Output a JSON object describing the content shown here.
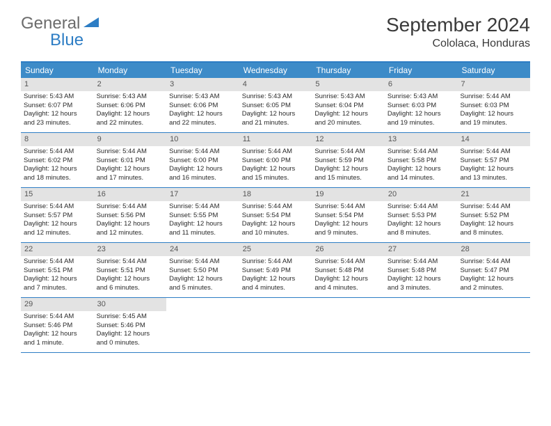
{
  "logo": {
    "general": "General",
    "blue": "Blue"
  },
  "title": "September 2024",
  "location": "Cololaca, Honduras",
  "dayHeaders": [
    "Sunday",
    "Monday",
    "Tuesday",
    "Wednesday",
    "Thursday",
    "Friday",
    "Saturday"
  ],
  "colors": {
    "accent": "#2d7dc4",
    "headerBg": "#3d8bc8",
    "dayNumBg": "#e3e3e3",
    "text": "#2a2a2a",
    "logoGray": "#6b6b6b"
  },
  "weeks": [
    [
      {
        "d": "1",
        "sr": "Sunrise: 5:43 AM",
        "ss": "Sunset: 6:07 PM",
        "dl1": "Daylight: 12 hours",
        "dl2": "and 23 minutes."
      },
      {
        "d": "2",
        "sr": "Sunrise: 5:43 AM",
        "ss": "Sunset: 6:06 PM",
        "dl1": "Daylight: 12 hours",
        "dl2": "and 22 minutes."
      },
      {
        "d": "3",
        "sr": "Sunrise: 5:43 AM",
        "ss": "Sunset: 6:06 PM",
        "dl1": "Daylight: 12 hours",
        "dl2": "and 22 minutes."
      },
      {
        "d": "4",
        "sr": "Sunrise: 5:43 AM",
        "ss": "Sunset: 6:05 PM",
        "dl1": "Daylight: 12 hours",
        "dl2": "and 21 minutes."
      },
      {
        "d": "5",
        "sr": "Sunrise: 5:43 AM",
        "ss": "Sunset: 6:04 PM",
        "dl1": "Daylight: 12 hours",
        "dl2": "and 20 minutes."
      },
      {
        "d": "6",
        "sr": "Sunrise: 5:43 AM",
        "ss": "Sunset: 6:03 PM",
        "dl1": "Daylight: 12 hours",
        "dl2": "and 19 minutes."
      },
      {
        "d": "7",
        "sr": "Sunrise: 5:44 AM",
        "ss": "Sunset: 6:03 PM",
        "dl1": "Daylight: 12 hours",
        "dl2": "and 19 minutes."
      }
    ],
    [
      {
        "d": "8",
        "sr": "Sunrise: 5:44 AM",
        "ss": "Sunset: 6:02 PM",
        "dl1": "Daylight: 12 hours",
        "dl2": "and 18 minutes."
      },
      {
        "d": "9",
        "sr": "Sunrise: 5:44 AM",
        "ss": "Sunset: 6:01 PM",
        "dl1": "Daylight: 12 hours",
        "dl2": "and 17 minutes."
      },
      {
        "d": "10",
        "sr": "Sunrise: 5:44 AM",
        "ss": "Sunset: 6:00 PM",
        "dl1": "Daylight: 12 hours",
        "dl2": "and 16 minutes."
      },
      {
        "d": "11",
        "sr": "Sunrise: 5:44 AM",
        "ss": "Sunset: 6:00 PM",
        "dl1": "Daylight: 12 hours",
        "dl2": "and 15 minutes."
      },
      {
        "d": "12",
        "sr": "Sunrise: 5:44 AM",
        "ss": "Sunset: 5:59 PM",
        "dl1": "Daylight: 12 hours",
        "dl2": "and 15 minutes."
      },
      {
        "d": "13",
        "sr": "Sunrise: 5:44 AM",
        "ss": "Sunset: 5:58 PM",
        "dl1": "Daylight: 12 hours",
        "dl2": "and 14 minutes."
      },
      {
        "d": "14",
        "sr": "Sunrise: 5:44 AM",
        "ss": "Sunset: 5:57 PM",
        "dl1": "Daylight: 12 hours",
        "dl2": "and 13 minutes."
      }
    ],
    [
      {
        "d": "15",
        "sr": "Sunrise: 5:44 AM",
        "ss": "Sunset: 5:57 PM",
        "dl1": "Daylight: 12 hours",
        "dl2": "and 12 minutes."
      },
      {
        "d": "16",
        "sr": "Sunrise: 5:44 AM",
        "ss": "Sunset: 5:56 PM",
        "dl1": "Daylight: 12 hours",
        "dl2": "and 12 minutes."
      },
      {
        "d": "17",
        "sr": "Sunrise: 5:44 AM",
        "ss": "Sunset: 5:55 PM",
        "dl1": "Daylight: 12 hours",
        "dl2": "and 11 minutes."
      },
      {
        "d": "18",
        "sr": "Sunrise: 5:44 AM",
        "ss": "Sunset: 5:54 PM",
        "dl1": "Daylight: 12 hours",
        "dl2": "and 10 minutes."
      },
      {
        "d": "19",
        "sr": "Sunrise: 5:44 AM",
        "ss": "Sunset: 5:54 PM",
        "dl1": "Daylight: 12 hours",
        "dl2": "and 9 minutes."
      },
      {
        "d": "20",
        "sr": "Sunrise: 5:44 AM",
        "ss": "Sunset: 5:53 PM",
        "dl1": "Daylight: 12 hours",
        "dl2": "and 8 minutes."
      },
      {
        "d": "21",
        "sr": "Sunrise: 5:44 AM",
        "ss": "Sunset: 5:52 PM",
        "dl1": "Daylight: 12 hours",
        "dl2": "and 8 minutes."
      }
    ],
    [
      {
        "d": "22",
        "sr": "Sunrise: 5:44 AM",
        "ss": "Sunset: 5:51 PM",
        "dl1": "Daylight: 12 hours",
        "dl2": "and 7 minutes."
      },
      {
        "d": "23",
        "sr": "Sunrise: 5:44 AM",
        "ss": "Sunset: 5:51 PM",
        "dl1": "Daylight: 12 hours",
        "dl2": "and 6 minutes."
      },
      {
        "d": "24",
        "sr": "Sunrise: 5:44 AM",
        "ss": "Sunset: 5:50 PM",
        "dl1": "Daylight: 12 hours",
        "dl2": "and 5 minutes."
      },
      {
        "d": "25",
        "sr": "Sunrise: 5:44 AM",
        "ss": "Sunset: 5:49 PM",
        "dl1": "Daylight: 12 hours",
        "dl2": "and 4 minutes."
      },
      {
        "d": "26",
        "sr": "Sunrise: 5:44 AM",
        "ss": "Sunset: 5:48 PM",
        "dl1": "Daylight: 12 hours",
        "dl2": "and 4 minutes."
      },
      {
        "d": "27",
        "sr": "Sunrise: 5:44 AM",
        "ss": "Sunset: 5:48 PM",
        "dl1": "Daylight: 12 hours",
        "dl2": "and 3 minutes."
      },
      {
        "d": "28",
        "sr": "Sunrise: 5:44 AM",
        "ss": "Sunset: 5:47 PM",
        "dl1": "Daylight: 12 hours",
        "dl2": "and 2 minutes."
      }
    ],
    [
      {
        "d": "29",
        "sr": "Sunrise: 5:44 AM",
        "ss": "Sunset: 5:46 PM",
        "dl1": "Daylight: 12 hours",
        "dl2": "and 1 minute."
      },
      {
        "d": "30",
        "sr": "Sunrise: 5:45 AM",
        "ss": "Sunset: 5:46 PM",
        "dl1": "Daylight: 12 hours",
        "dl2": "and 0 minutes."
      },
      null,
      null,
      null,
      null,
      null
    ]
  ]
}
